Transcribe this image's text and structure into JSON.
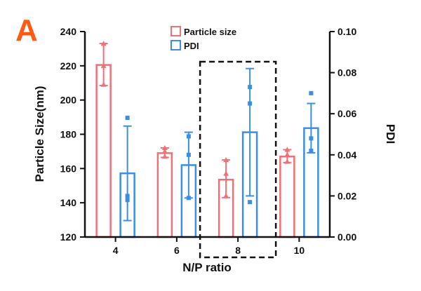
{
  "panel_label": "A",
  "colors": {
    "particle_size": "#f07075",
    "pdi": "#3b8ee8",
    "axis": "#111111",
    "highlight_box": "#111111"
  },
  "chart_data": {
    "type": "bar",
    "title": "",
    "xlabel": "N/P ratio",
    "ylabel": "Particle Size(nm)",
    "y2label": "PDI",
    "categories": [
      "4",
      "6",
      "8",
      "10"
    ],
    "ylim": [
      120,
      240
    ],
    "yticks": [
      120,
      140,
      160,
      180,
      200,
      220,
      240
    ],
    "y2lim": [
      0.0,
      0.1
    ],
    "y2ticks": [
      "0.00",
      "0.02",
      "0.04",
      "0.06",
      "0.08",
      "0.10"
    ],
    "legend_position": "top-center",
    "grid": false,
    "highlighted_category": "8",
    "series": [
      {
        "name": "Particle size",
        "axis": "left",
        "values": [
          220.5,
          169,
          153.5,
          167
        ],
        "error_low": [
          208.5,
          166.5,
          143,
          163.5
        ],
        "error_high": [
          233,
          172,
          165,
          171
        ],
        "points": [
          [
            233,
            220,
            209
          ],
          [
            172,
            170,
            167
          ],
          [
            165,
            157,
            144
          ],
          [
            171,
            168,
            164
          ]
        ]
      },
      {
        "name": "PDI",
        "axis": "right",
        "values": [
          0.031,
          0.035,
          0.051,
          0.053
        ],
        "error_low": [
          0.008,
          0.019,
          0.02,
          0.041
        ],
        "error_high": [
          0.054,
          0.051,
          0.082,
          0.065
        ],
        "points": [
          [
            0.058,
            0.02,
            0.018
          ],
          [
            0.049,
            0.04,
            0.019
          ],
          [
            0.073,
            0.065,
            0.017
          ],
          [
            0.07,
            0.048,
            0.042
          ]
        ]
      }
    ]
  }
}
